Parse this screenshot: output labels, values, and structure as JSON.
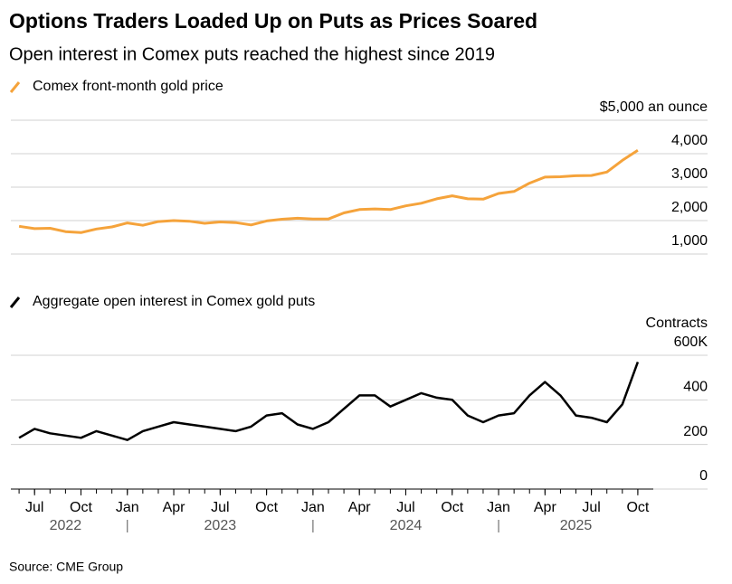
{
  "chart_data": [
    {
      "type": "line",
      "title": "Options Traders Loaded Up on Puts as Prices Soared",
      "subtitle": "Open interest in Comex puts reached the highest since 2019",
      "source": "Source: CME Group",
      "x": [
        "2022-06",
        "2022-07",
        "2022-08",
        "2022-09",
        "2022-10",
        "2022-11",
        "2022-12",
        "2023-01",
        "2023-02",
        "2023-03",
        "2023-04",
        "2023-05",
        "2023-06",
        "2023-07",
        "2023-08",
        "2023-09",
        "2023-10",
        "2023-11",
        "2023-12",
        "2024-01",
        "2024-02",
        "2024-03",
        "2024-04",
        "2024-05",
        "2024-06",
        "2024-07",
        "2024-08",
        "2024-09",
        "2024-10",
        "2024-11",
        "2024-12",
        "2025-01",
        "2025-02",
        "2025-03",
        "2025-04",
        "2025-05",
        "2025-06",
        "2025-07",
        "2025-08",
        "2025-09",
        "2025-10"
      ],
      "series": [
        {
          "name": "Comex front-month gold price",
          "color": "#f5a33b",
          "values": [
            1830,
            1760,
            1770,
            1670,
            1640,
            1750,
            1810,
            1930,
            1860,
            1970,
            2000,
            1980,
            1920,
            1960,
            1940,
            1870,
            1990,
            2040,
            2070,
            2050,
            2050,
            2230,
            2330,
            2350,
            2330,
            2440,
            2520,
            2650,
            2740,
            2650,
            2640,
            2810,
            2870,
            3120,
            3300,
            3310,
            3340,
            3350,
            3450,
            3800,
            4100
          ]
        }
      ],
      "xlim": [
        "2022-05",
        "2025-11"
      ],
      "ylim": [
        1000,
        5000
      ],
      "yticks": [
        {
          "value": 1000,
          "label": "1,000"
        },
        {
          "value": 2000,
          "label": "2,000"
        },
        {
          "value": 3000,
          "label": "3,000"
        },
        {
          "value": 4000,
          "label": "4,000"
        },
        {
          "value": 5000,
          "label": "$5,000 an ounce"
        }
      ],
      "grid": true
    },
    {
      "type": "line",
      "y_axis_label": "Contracts",
      "x": [
        "2022-06",
        "2022-07",
        "2022-08",
        "2022-09",
        "2022-10",
        "2022-11",
        "2022-12",
        "2023-01",
        "2023-02",
        "2023-03",
        "2023-04",
        "2023-05",
        "2023-06",
        "2023-07",
        "2023-08",
        "2023-09",
        "2023-10",
        "2023-11",
        "2023-12",
        "2024-01",
        "2024-02",
        "2024-03",
        "2024-04",
        "2024-05",
        "2024-06",
        "2024-07",
        "2024-08",
        "2024-09",
        "2024-10",
        "2024-11",
        "2024-12",
        "2025-01",
        "2025-02",
        "2025-03",
        "2025-04",
        "2025-05",
        "2025-06",
        "2025-07",
        "2025-08",
        "2025-09",
        "2025-10"
      ],
      "series": [
        {
          "name": "Aggregate open interest in Comex gold puts",
          "color": "#000000",
          "values": [
            230,
            270,
            250,
            240,
            230,
            260,
            240,
            220,
            260,
            280,
            300,
            290,
            280,
            270,
            260,
            280,
            330,
            340,
            290,
            270,
            300,
            360,
            420,
            420,
            370,
            400,
            430,
            410,
            400,
            330,
            300,
            330,
            340,
            420,
            480,
            420,
            330,
            320,
            300,
            380,
            570
          ]
        }
      ],
      "xlim": [
        "2022-05",
        "2025-11"
      ],
      "ylim": [
        0,
        600
      ],
      "yticks": [
        0,
        200,
        400,
        {
          "value": 600,
          "label": "600K"
        }
      ],
      "xticks": [
        {
          "value": "2022-07",
          "label": "Jul"
        },
        {
          "value": "2022-10",
          "label": "Oct"
        },
        {
          "value": "2023-01",
          "label": "Jan"
        },
        {
          "value": "2023-04",
          "label": "Apr"
        },
        {
          "value": "2023-07",
          "label": "Jul"
        },
        {
          "value": "2023-10",
          "label": "Oct"
        },
        {
          "value": "2024-01",
          "label": "Jan"
        },
        {
          "value": "2024-04",
          "label": "Apr"
        },
        {
          "value": "2024-07",
          "label": "Jul"
        },
        {
          "value": "2024-10",
          "label": "Oct"
        },
        {
          "value": "2025-01",
          "label": "Jan"
        },
        {
          "value": "2025-04",
          "label": "Apr"
        },
        {
          "value": "2025-07",
          "label": "Jul"
        },
        {
          "value": "2025-10",
          "label": "Oct"
        }
      ],
      "year_labels": [
        "2022",
        "2023",
        "2024",
        "2025"
      ],
      "grid": true
    }
  ]
}
